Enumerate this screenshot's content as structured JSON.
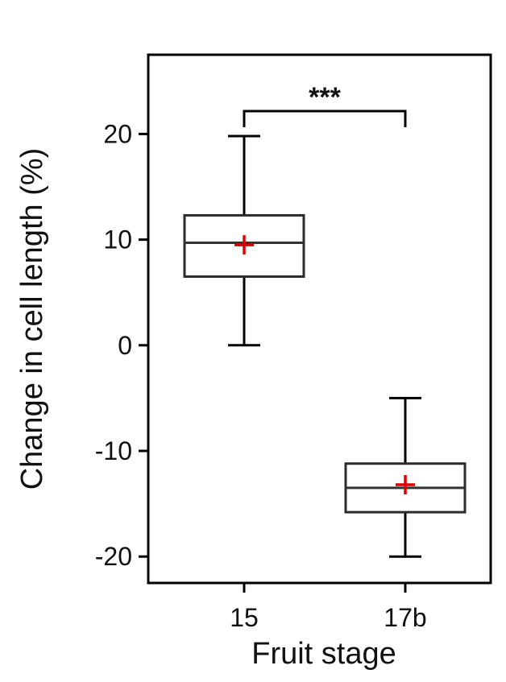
{
  "chart_data": {
    "type": "box",
    "xlabel": "Fruit stage",
    "ylabel": "Change in cell length (%)",
    "ylim": [
      -22.5,
      27.5
    ],
    "yticks": [
      20,
      10,
      0,
      -10,
      -20
    ],
    "ytick_labels": [
      "20",
      "10",
      "0",
      "-10",
      "-20"
    ],
    "categories": [
      "15",
      "17b"
    ],
    "boxes": [
      {
        "category": "15",
        "min": 0,
        "q1": 6.5,
        "median": 9.7,
        "q3": 12.3,
        "max": 19.8,
        "mean": 9.5
      },
      {
        "category": "17b",
        "min": -20,
        "q1": -15.8,
        "median": -13.5,
        "q3": -11.2,
        "max": -5,
        "mean": -13.2
      }
    ],
    "significance": {
      "label": "***",
      "between": [
        "15",
        "17b"
      ]
    },
    "colors": {
      "box": "#2b2b2b",
      "mean_marker": "#e00000",
      "axis": "#000000"
    },
    "mean_marker": "plus",
    "grid": false,
    "legend": "none"
  }
}
